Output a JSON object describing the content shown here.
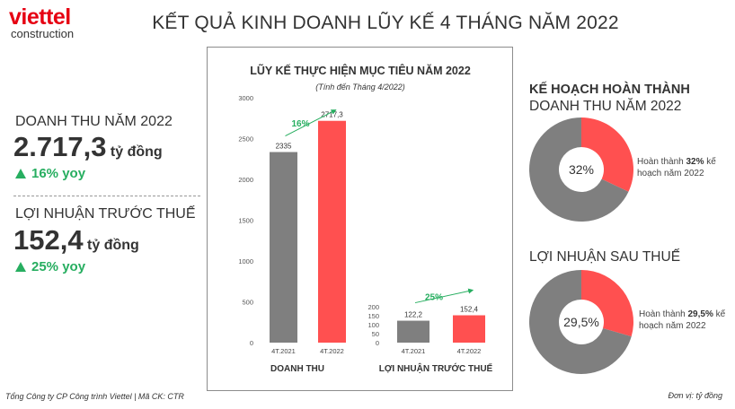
{
  "logo": {
    "brand": "viettel",
    "sub": "construction"
  },
  "title": "KẾT QUẢ KINH DOANH LŨY KẾ 4 THÁNG NĂM 2022",
  "left": {
    "revenue": {
      "label": "DOANH THU NĂM 2022",
      "value": "2.717,3",
      "unit": "tỷ đồng",
      "growth": "16% yoy"
    },
    "profit": {
      "label": "LỢI NHUẬN TRƯỚC THUẾ",
      "value": "152,4",
      "unit": "tỷ đồng",
      "growth": "25% yoy"
    }
  },
  "chart_data": [
    {
      "type": "bar",
      "title": "LŨY KẾ THỰC HIỆN MỤC TIÊU NĂM 2022",
      "subtitle": "(Tính đến Tháng 4/2022)",
      "group_label": "DOANH THU",
      "categories": [
        "4T.2021",
        "4T.2022"
      ],
      "values": [
        2335,
        2717.3
      ],
      "value_labels": [
        "2335",
        "2717,3"
      ],
      "colors": [
        "#7f7f7f",
        "#ff5050"
      ],
      "growth_label": "16%",
      "ylim": [
        0,
        3000
      ],
      "yticks": [
        "0",
        "500",
        "1000",
        "1500",
        "2000",
        "2500",
        "3000"
      ]
    },
    {
      "type": "bar",
      "group_label": "LỢI NHUẬN TRƯỚC THUẾ",
      "categories": [
        "4T.2021",
        "4T.2022"
      ],
      "values": [
        122.2,
        152.4
      ],
      "value_labels": [
        "122,2",
        "152,4"
      ],
      "colors": [
        "#7f7f7f",
        "#ff5050"
      ],
      "growth_label": "25%",
      "ylim": [
        0,
        200
      ],
      "yticks": [
        "0",
        "50",
        "100",
        "150",
        "200"
      ]
    },
    {
      "type": "pie",
      "title": "KẾ HOẠCH HOÀN THÀNH",
      "subtitle": "DOANH THU NĂM 2022",
      "value": 32,
      "center_label": "32%",
      "note_prefix": "Hoàn thành ",
      "note_bold": "32%",
      "note_suffix": " kế hoạch năm 2022",
      "colors": [
        "#ff5050",
        "#7f7f7f"
      ]
    },
    {
      "type": "pie",
      "title": "LỢI NHUẬN SAU THUẾ",
      "value": 29.5,
      "center_label": "29,5%",
      "note_prefix": "Hoàn thành ",
      "note_bold": "29,5%",
      "note_suffix": " kế hoạch năm 2022",
      "colors": [
        "#ff5050",
        "#7f7f7f"
      ]
    }
  ],
  "footer": {
    "left": "Tổng Công ty CP Công trình Viettel   |   Mã CK: CTR",
    "right": "Đơn vị: tỷ đồng"
  }
}
